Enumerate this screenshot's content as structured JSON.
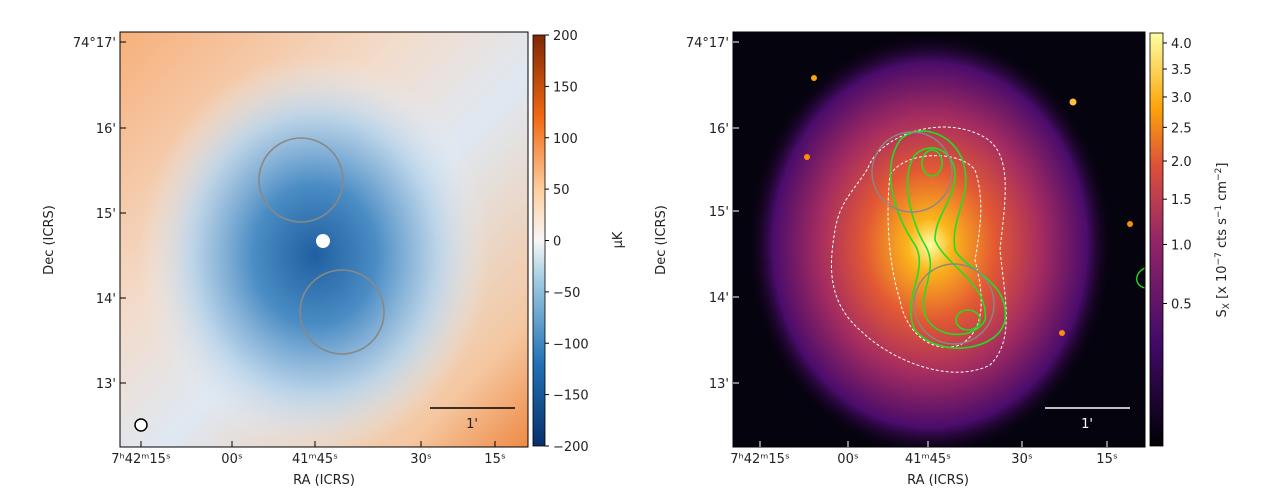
{
  "chart_data": [
    {
      "type": "heatmap",
      "panel": "left",
      "xlabel": "RA (ICRS)",
      "ylabel": "Dec (ICRS)",
      "x_ticks": [
        "7h42m15s",
        "00s",
        "41m45s",
        "30s",
        "15s"
      ],
      "y_ticks": [
        "74°17'",
        "16'",
        "15'",
        "14'",
        "13'"
      ],
      "colorbar": {
        "label": "μK",
        "ticks": [
          200,
          150,
          100,
          50,
          0,
          -50,
          -100,
          -150,
          -200
        ],
        "range": [
          -200,
          200
        ],
        "colormap": "diverging blue-white-orange",
        "colors": {
          "low": "#08306b",
          "mid": "#f7f7f7",
          "high": "#7f2704"
        }
      },
      "scale_bar_label": "1'",
      "annotations": [
        "two gray circles",
        "beam circle in bottom-left"
      ]
    },
    {
      "type": "heatmap",
      "panel": "right",
      "xlabel": "RA (ICRS)",
      "ylabel": "Dec (ICRS)",
      "x_ticks": [
        "7h42m15s",
        "00s",
        "41m45s",
        "30s",
        "15s"
      ],
      "y_ticks": [
        "74°17'",
        "16'",
        "15'",
        "14'",
        "13'"
      ],
      "colorbar": {
        "label": "S_X [x 10^-7 cts s^-1 cm^-2]",
        "ticks": [
          4.0,
          3.5,
          3.0,
          2.5,
          2.0,
          1.5,
          1.0,
          0.5
        ],
        "scale": "sqrt",
        "colormap": "inferno",
        "colors": {
          "low": "#000004",
          "mid": "#bc3754",
          "high": "#fcffa4"
        }
      },
      "scale_bar_label": "1'",
      "annotations": [
        "green contours",
        "white dashed contours",
        "two gray circles"
      ]
    }
  ]
}
